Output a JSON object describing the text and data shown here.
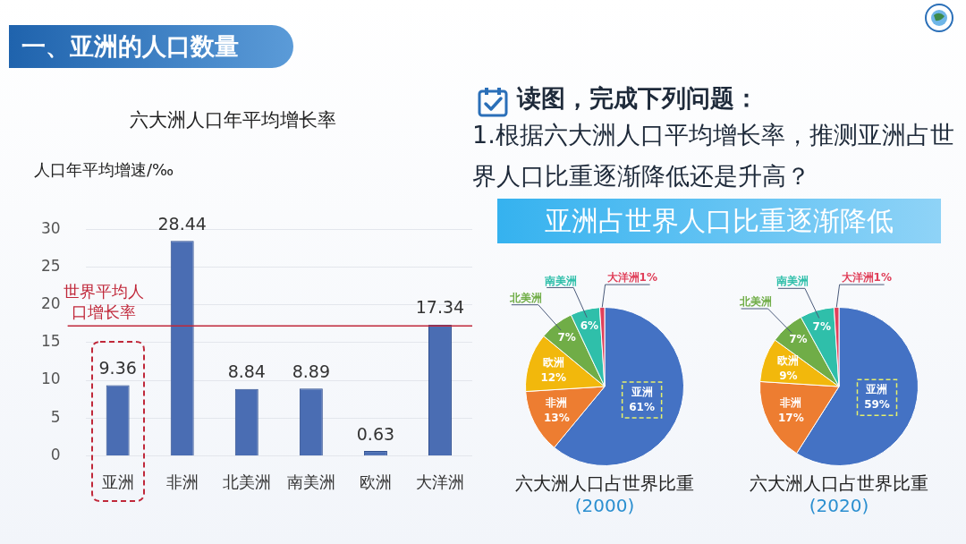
{
  "chart_data": [
    {
      "type": "other",
      "title": "一、亚洲的人口数量",
      "annotations": [
        "读图，完成下列问题：",
        "1.根据六大洲人口平均增长率，推测亚洲占世界人口比重逐渐降低还是升高？",
        "亚洲占世界人口比重逐渐降低"
      ]
    },
    {
      "type": "bar",
      "title": "六大洲人口年平均增长率",
      "ylabel": "人口年平均增速/‰",
      "categories": [
        "亚洲",
        "非洲",
        "北美洲",
        "南美洲",
        "欧洲",
        "大洋洲"
      ],
      "values": [
        9.36,
        28.44,
        8.84,
        8.89,
        0.63,
        17.34
      ],
      "color": "#4a6db3",
      "ylim": [
        0,
        30
      ],
      "yticks": [
        0,
        5,
        10,
        15,
        20,
        25,
        30
      ],
      "grid": "y",
      "data_labels": true,
      "legend": false,
      "ref_lines": [
        {
          "axis": "y",
          "value": 17.2,
          "label": "世界平均人口增长率",
          "color": "#c0283a"
        }
      ]
    },
    {
      "type": "pie",
      "title": "六大洲人口占世界比重",
      "subtitle": "(2000)",
      "categories": [
        "亚洲",
        "非洲",
        "欧洲",
        "北美洲",
        "南美洲",
        "大洋洲"
      ],
      "values": [
        61,
        13,
        12,
        7,
        6,
        1
      ],
      "colors": [
        "#4472c4",
        "#ed7d31",
        "#f2b80c",
        "#70ad47",
        "#2fbfaa",
        "#e0405a"
      ],
      "value_labels": [
        "61%",
        "13%",
        "12%",
        "7%",
        "6%",
        "1%"
      ]
    },
    {
      "type": "pie",
      "title": "六大洲人口占世界比重",
      "subtitle": "(2020)",
      "categories": [
        "亚洲",
        "非洲",
        "欧洲",
        "北美洲",
        "南美洲",
        "大洋洲"
      ],
      "values": [
        59,
        17,
        9,
        7,
        7,
        1
      ],
      "colors": [
        "#4472c4",
        "#ed7d31",
        "#f2b80c",
        "#70ad47",
        "#2fbfaa",
        "#e0405a"
      ],
      "value_labels": [
        "59%",
        "17%",
        "9%",
        "7%",
        "7%",
        "1%"
      ]
    }
  ]
}
